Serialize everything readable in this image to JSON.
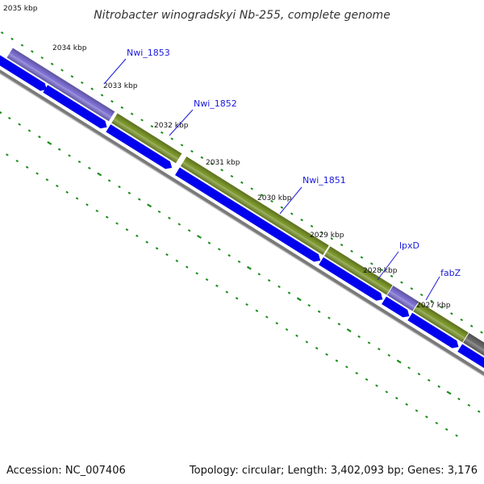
{
  "title": "Nitrobacter winogradskyi Nb-255, complete genome",
  "accession": "Accession: NC_007406",
  "summary": "Topology: circular; Length: 3,402,093 bp; Genes: 3,176",
  "colors": {
    "cds": "#0000ee",
    "gene_olive": "#7f9a2c",
    "gene_purple": "#7f72d8",
    "gene_gray": "#6c6c6c",
    "ticks": "#1a8c1a",
    "labels": "#1a1adc",
    "backbone": "#888888"
  },
  "kbp_labels": [
    "2035 kbp",
    "2034 kbp",
    "2033 kbp",
    "2032 kbp",
    "2031 kbp",
    "2030 kbp",
    "2029 kbp",
    "2028 kbp",
    "2027 kbp"
  ],
  "gene_labels": [
    "Nwi_1853",
    "Nwi_1852",
    "Nwi_1851",
    "lpxD",
    "fabZ"
  ]
}
